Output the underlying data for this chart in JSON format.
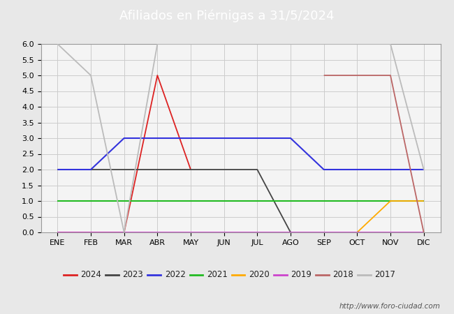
{
  "title": "Afiliados en Piérnigas a 31/5/2024",
  "title_bg_color": "#5b8fc9",
  "title_text_color": "white",
  "ylim_min": 0.0,
  "ylim_max": 6.0,
  "ytick_step": 0.5,
  "months": [
    "ENE",
    "FEB",
    "MAR",
    "ABR",
    "MAY",
    "JUN",
    "JUL",
    "AGO",
    "SEP",
    "OCT",
    "NOV",
    "DIC"
  ],
  "watermark": "http://www.foro-ciudad.com",
  "series": [
    {
      "year": "2024",
      "color": "#dd2222",
      "linewidth": 1.3,
      "data": [
        0,
        0,
        0,
        5,
        2,
        null,
        null,
        null,
        null,
        null,
        null,
        null
      ]
    },
    {
      "year": "2023",
      "color": "#444444",
      "linewidth": 1.3,
      "data": [
        2,
        2,
        2,
        2,
        2,
        2,
        2,
        0,
        null,
        null,
        null,
        null
      ]
    },
    {
      "year": "2022",
      "color": "#3333dd",
      "linewidth": 1.5,
      "data": [
        2,
        2,
        3,
        3,
        3,
        3,
        3,
        3,
        2,
        2,
        2,
        2
      ]
    },
    {
      "year": "2021",
      "color": "#22bb22",
      "linewidth": 1.5,
      "data": [
        1,
        1,
        1,
        1,
        1,
        1,
        1,
        1,
        1,
        1,
        1,
        1
      ]
    },
    {
      "year": "2020",
      "color": "#ffaa00",
      "linewidth": 1.3,
      "data": [
        null,
        null,
        null,
        null,
        null,
        null,
        null,
        null,
        null,
        0,
        1,
        1
      ]
    },
    {
      "year": "2019",
      "color": "#cc44cc",
      "linewidth": 1.3,
      "data": [
        0,
        0,
        0,
        0,
        0,
        0,
        0,
        0,
        0,
        0,
        0,
        0
      ]
    },
    {
      "year": "2018",
      "color": "#bb6666",
      "linewidth": 1.3,
      "data": [
        null,
        null,
        null,
        null,
        null,
        null,
        null,
        null,
        5,
        5,
        5,
        0
      ]
    },
    {
      "year": "2017",
      "color": "#bbbbbb",
      "linewidth": 1.3,
      "data": [
        6,
        5,
        0,
        6,
        6,
        6,
        6,
        6,
        6,
        6,
        6,
        2
      ]
    }
  ],
  "background_color": "#e8e8e8",
  "plot_bg_color": "#f4f4f4",
  "grid_color": "#cccccc",
  "title_fontsize": 13,
  "tick_fontsize": 8,
  "legend_fontsize": 8.5
}
